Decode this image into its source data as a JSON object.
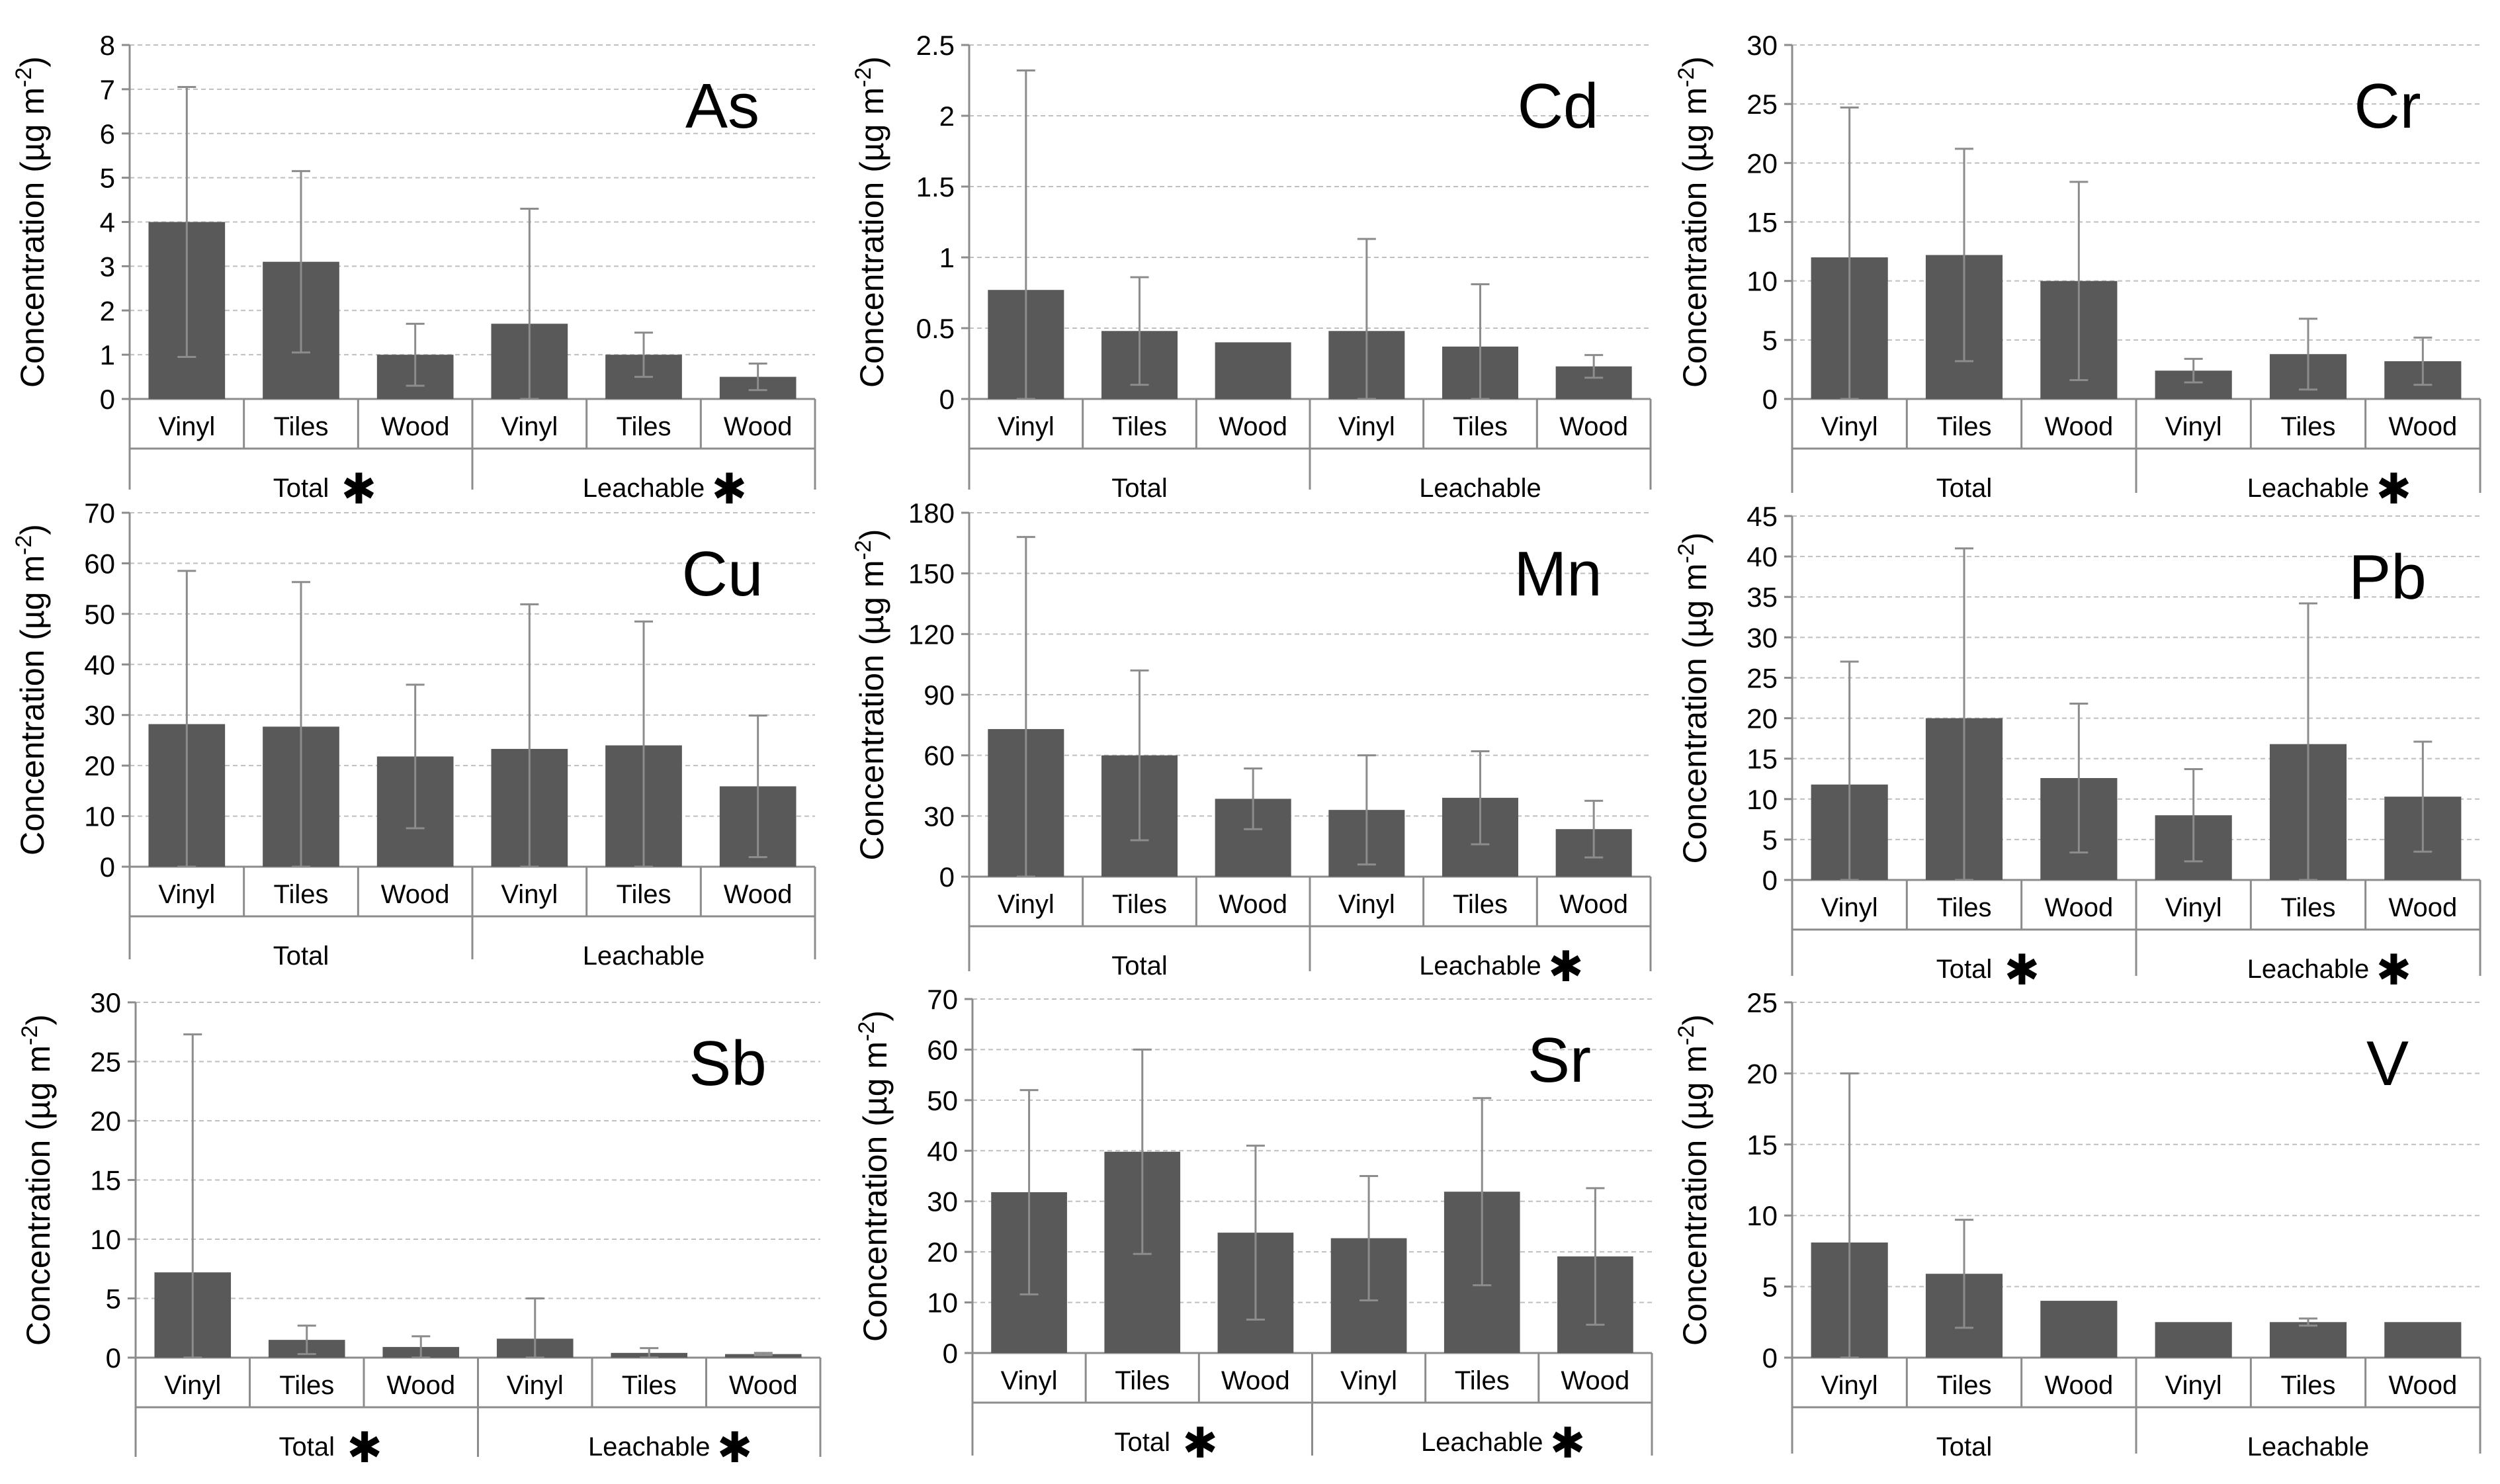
{
  "figure": {
    "ylabel_prefix": "Concentration (µg m",
    "ylabel_exp": "-2",
    "ylabel_suffix": ")",
    "bar_color": "#595959",
    "error_color": "#8c8c8c",
    "grid_color": "#bfbfbf",
    "axis_color": "#8c8c8c",
    "significance_marker": "✱"
  },
  "chart_data": [
    {
      "type": "bar",
      "title": "As",
      "ylabel": "Concentration (µg m-2)",
      "ylim": [
        0,
        8
      ],
      "yticks": [
        0,
        1,
        2,
        3,
        4,
        5,
        6,
        7,
        8
      ],
      "categories": [
        "Vinyl",
        "Tiles",
        "Wood",
        "Vinyl",
        "Tiles",
        "Wood"
      ],
      "groups": [
        {
          "label": "Total",
          "significant": true
        },
        {
          "label": "Leachable",
          "significant": true
        }
      ],
      "values": [
        4.0,
        3.1,
        1.0,
        1.7,
        1.0,
        0.5
      ],
      "errors": [
        3.05,
        2.05,
        0.7,
        2.6,
        0.5,
        0.3
      ]
    },
    {
      "type": "bar",
      "title": "Cd",
      "ylabel": "Concentration (µg m-2)",
      "ylim": [
        0,
        2.5
      ],
      "yticks": [
        0,
        0.5,
        1,
        1.5,
        2,
        2.5
      ],
      "categories": [
        "Vinyl",
        "Tiles",
        "Wood",
        "Vinyl",
        "Tiles",
        "Wood"
      ],
      "groups": [
        {
          "label": "Total",
          "significant": false
        },
        {
          "label": "Leachable",
          "significant": false
        }
      ],
      "values": [
        0.77,
        0.48,
        0.4,
        0.48,
        0.37,
        0.23
      ],
      "errors": [
        1.55,
        0.38,
        0.0,
        0.65,
        0.44,
        0.08
      ]
    },
    {
      "type": "bar",
      "title": "Cr",
      "ylabel": "Concentration (µg m-2)",
      "ylim": [
        0,
        30
      ],
      "yticks": [
        0,
        5,
        10,
        15,
        20,
        25,
        30
      ],
      "categories": [
        "Vinyl",
        "Tiles",
        "Wood",
        "Vinyl",
        "Tiles",
        "Wood"
      ],
      "groups": [
        {
          "label": "Total",
          "significant": false
        },
        {
          "label": "Leachable",
          "significant": true
        }
      ],
      "values": [
        12.0,
        12.2,
        10.0,
        2.4,
        3.8,
        3.2
      ],
      "errors": [
        12.7,
        9.0,
        8.4,
        1.0,
        3.0,
        2.0
      ]
    },
    {
      "type": "bar",
      "title": "Cu",
      "ylabel": "Concentration (µg m-2)",
      "ylim": [
        0,
        70
      ],
      "yticks": [
        0,
        10,
        20,
        30,
        40,
        50,
        60,
        70
      ],
      "categories": [
        "Vinyl",
        "Tiles",
        "Wood",
        "Vinyl",
        "Tiles",
        "Wood"
      ],
      "groups": [
        {
          "label": "Total",
          "significant": false
        },
        {
          "label": "Leachable",
          "significant": false
        }
      ],
      "values": [
        28.2,
        27.7,
        21.8,
        23.3,
        24.0,
        15.9
      ],
      "errors": [
        30.3,
        28.6,
        14.2,
        28.6,
        24.5,
        14.0
      ]
    },
    {
      "type": "bar",
      "title": "Mn",
      "ylabel": "Concentration (µg m-2)",
      "ylim": [
        0,
        180
      ],
      "yticks": [
        0,
        30,
        60,
        90,
        120,
        150,
        180
      ],
      "categories": [
        "Vinyl",
        "Tiles",
        "Wood",
        "Vinyl",
        "Tiles",
        "Wood"
      ],
      "groups": [
        {
          "label": "Total",
          "significant": false
        },
        {
          "label": "Leachable",
          "significant": true
        }
      ],
      "values": [
        73.0,
        60.0,
        38.5,
        33.0,
        39.0,
        23.5
      ],
      "errors": [
        95.0,
        42.0,
        15.0,
        27.0,
        23.0,
        14.0
      ]
    },
    {
      "type": "bar",
      "title": "Pb",
      "ylabel": "Concentration (µg m-2)",
      "ylim": [
        0,
        45
      ],
      "yticks": [
        0,
        5,
        10,
        15,
        20,
        25,
        30,
        35,
        40,
        45
      ],
      "categories": [
        "Vinyl",
        "Tiles",
        "Wood",
        "Vinyl",
        "Tiles",
        "Wood"
      ],
      "groups": [
        {
          "label": "Total",
          "significant": true
        },
        {
          "label": "Leachable",
          "significant": true
        }
      ],
      "values": [
        11.8,
        20.0,
        12.6,
        8.0,
        16.8,
        10.3
      ],
      "errors": [
        15.2,
        21.0,
        9.2,
        5.7,
        17.4,
        6.8
      ]
    },
    {
      "type": "bar",
      "title": "Sb",
      "ylabel": "Concentration (µg m-2)",
      "ylim": [
        0,
        30
      ],
      "yticks": [
        0,
        5,
        10,
        15,
        20,
        25,
        30
      ],
      "categories": [
        "Vinyl",
        "Tiles",
        "Wood",
        "Vinyl",
        "Tiles",
        "Wood"
      ],
      "groups": [
        {
          "label": "Total",
          "significant": true
        },
        {
          "label": "Leachable",
          "significant": true
        }
      ],
      "values": [
        7.2,
        1.5,
        0.9,
        1.6,
        0.4,
        0.3
      ],
      "errors": [
        20.1,
        1.2,
        0.9,
        3.4,
        0.4,
        0.1
      ]
    },
    {
      "type": "bar",
      "title": "Sr",
      "ylabel": "Concentration (µg m-2)",
      "ylim": [
        0,
        70
      ],
      "yticks": [
        0,
        10,
        20,
        30,
        40,
        50,
        60,
        70
      ],
      "categories": [
        "Vinyl",
        "Tiles",
        "Wood",
        "Vinyl",
        "Tiles",
        "Wood"
      ],
      "groups": [
        {
          "label": "Total",
          "significant": true
        },
        {
          "label": "Leachable",
          "significant": true
        }
      ],
      "values": [
        31.8,
        39.8,
        23.8,
        22.7,
        31.9,
        19.1
      ],
      "errors": [
        20.2,
        20.2,
        17.2,
        12.3,
        18.5,
        13.5
      ]
    },
    {
      "type": "bar",
      "title": "V",
      "ylabel": "Concentration (µg m-2)",
      "ylim": [
        0,
        25
      ],
      "yticks": [
        0,
        5,
        10,
        15,
        20,
        25
      ],
      "categories": [
        "Vinyl",
        "Tiles",
        "Wood",
        "Vinyl",
        "Tiles",
        "Wood"
      ],
      "groups": [
        {
          "label": "Total",
          "significant": false
        },
        {
          "label": "Leachable",
          "significant": false
        }
      ],
      "values": [
        8.1,
        5.9,
        4.0,
        2.5,
        2.5,
        2.5
      ],
      "errors": [
        11.9,
        3.8,
        0.0,
        0.0,
        0.25,
        0.0
      ]
    }
  ]
}
